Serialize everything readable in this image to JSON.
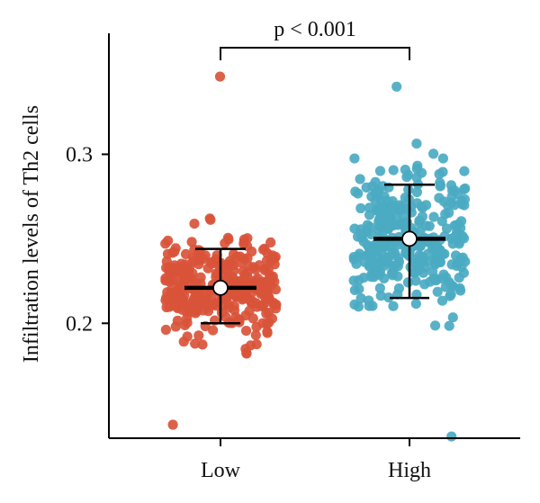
{
  "chart_data": {
    "type": "scatter",
    "subtype": "jitter-strip with mean and error bars",
    "title": "",
    "xlabel": "",
    "ylabel": "Infiltration levels of Th2 cells",
    "categories": [
      "Low",
      "High"
    ],
    "ylim": [
      0.132,
      0.37
    ],
    "yticks": [
      "0.2",
      "0.3"
    ],
    "grid": false,
    "legend": "none",
    "groups": [
      {
        "category": "Low",
        "color": "#d9543a",
        "n_points": 330,
        "mean": 0.221,
        "error_low": 0.2,
        "error_high": 0.244,
        "y_min": 0.14,
        "y_max": 0.346
      },
      {
        "category": "High",
        "color": "#4aaac2",
        "n_points": 330,
        "mean": 0.25,
        "error_low": 0.215,
        "error_high": 0.282,
        "y_min": 0.133,
        "y_max": 0.34
      }
    ],
    "significance": {
      "label": "p < 0.001",
      "between": [
        "Low",
        "High"
      ]
    },
    "axis_color": "#000000",
    "mean_marker_color": "#ffffff",
    "error_bar_color": "#000000"
  }
}
